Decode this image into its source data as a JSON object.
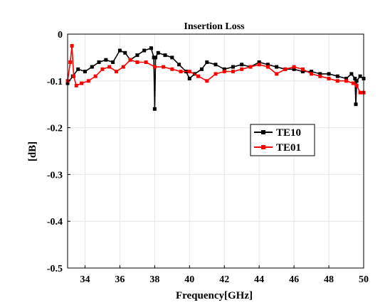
{
  "chart_data": {
    "type": "line",
    "title": "Insertion Loss",
    "xlabel": "Frequency[GHz]",
    "ylabel": "[dB]",
    "xlim": [
      33,
      50
    ],
    "ylim": [
      -0.5,
      0
    ],
    "x_ticks": [
      34,
      36,
      38,
      40,
      42,
      44,
      46,
      48,
      50
    ],
    "y_ticks": [
      0,
      -0.1,
      -0.2,
      -0.3,
      -0.4,
      -0.5
    ],
    "y_tick_labels": [
      "0",
      "-0.1",
      "-0.2",
      "-0.3",
      "-0.4",
      "-0.5"
    ],
    "grid": true,
    "legend_position": "center-right",
    "series": [
      {
        "name": "TE10",
        "color": "#000000",
        "marker": "square",
        "x": [
          33.0,
          33.3,
          33.6,
          34.0,
          34.4,
          34.8,
          35.2,
          35.6,
          36.0,
          36.3,
          36.6,
          37.0,
          37.4,
          37.8,
          37.95,
          38.0,
          38.05,
          38.2,
          38.6,
          39.0,
          39.4,
          39.8,
          40.0,
          40.3,
          40.7,
          41.0,
          41.5,
          42.0,
          42.5,
          43.0,
          43.5,
          44.0,
          44.5,
          45.0,
          45.5,
          46.0,
          46.5,
          47.0,
          47.5,
          48.0,
          48.5,
          49.0,
          49.3,
          49.5,
          49.55,
          49.6,
          49.8,
          50.0
        ],
        "y": [
          -0.105,
          -0.09,
          -0.075,
          -0.08,
          -0.07,
          -0.06,
          -0.055,
          -0.06,
          -0.035,
          -0.04,
          -0.055,
          -0.045,
          -0.035,
          -0.03,
          -0.05,
          -0.16,
          -0.05,
          -0.04,
          -0.045,
          -0.05,
          -0.065,
          -0.08,
          -0.095,
          -0.085,
          -0.075,
          -0.06,
          -0.065,
          -0.075,
          -0.07,
          -0.065,
          -0.07,
          -0.06,
          -0.065,
          -0.07,
          -0.075,
          -0.075,
          -0.08,
          -0.08,
          -0.085,
          -0.085,
          -0.09,
          -0.095,
          -0.085,
          -0.095,
          -0.15,
          -0.1,
          -0.09,
          -0.095
        ]
      },
      {
        "name": "TE01",
        "color": "#ff0000",
        "marker": "square",
        "x": [
          33.0,
          33.15,
          33.25,
          33.35,
          33.5,
          33.8,
          34.2,
          34.6,
          35.0,
          35.4,
          35.8,
          36.2,
          36.6,
          37.0,
          37.5,
          38.0,
          38.5,
          39.0,
          39.5,
          40.0,
          40.5,
          41.0,
          41.5,
          42.0,
          42.5,
          43.0,
          43.5,
          44.0,
          44.5,
          45.0,
          45.5,
          46.0,
          46.5,
          47.0,
          47.5,
          48.0,
          48.5,
          49.0,
          49.4,
          49.6,
          49.8,
          50.0
        ],
        "y": [
          -0.1,
          -0.06,
          -0.025,
          -0.09,
          -0.11,
          -0.105,
          -0.1,
          -0.09,
          -0.075,
          -0.07,
          -0.08,
          -0.07,
          -0.055,
          -0.06,
          -0.06,
          -0.07,
          -0.07,
          -0.075,
          -0.08,
          -0.08,
          -0.09,
          -0.1,
          -0.085,
          -0.08,
          -0.08,
          -0.075,
          -0.07,
          -0.065,
          -0.07,
          -0.085,
          -0.075,
          -0.07,
          -0.075,
          -0.085,
          -0.09,
          -0.095,
          -0.1,
          -0.1,
          -0.105,
          -0.11,
          -0.125,
          -0.125
        ]
      }
    ]
  }
}
